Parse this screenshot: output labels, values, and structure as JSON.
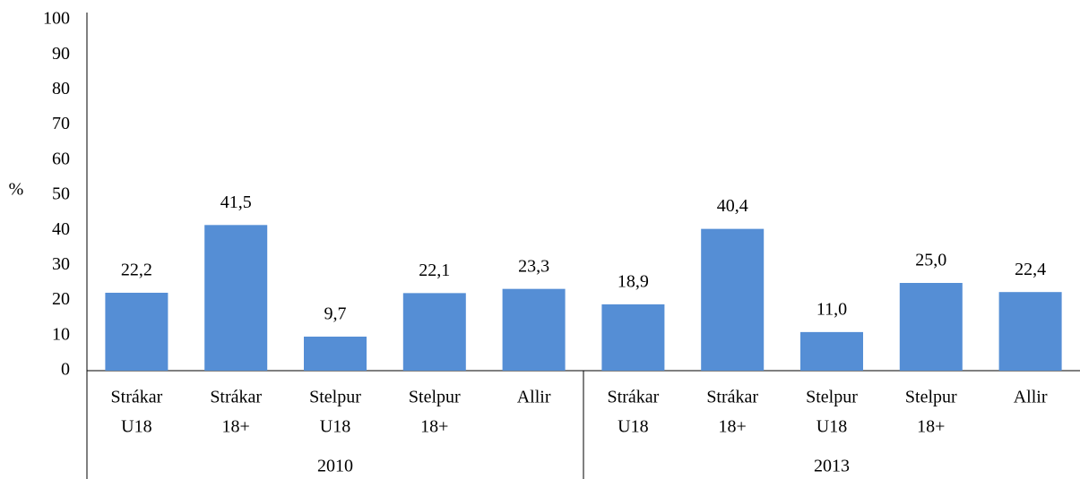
{
  "chart_data": {
    "type": "bar",
    "y_label": "%",
    "groups": [
      "2010",
      "2013"
    ],
    "categories": [
      [
        "Strákar",
        "U18"
      ],
      [
        "Strákar",
        "18+"
      ],
      [
        "Stelpur",
        "U18"
      ],
      [
        "Stelpur",
        "18+"
      ],
      [
        "Allir"
      ],
      [
        "Strákar",
        "U18"
      ],
      [
        "Strákar",
        "18+"
      ],
      [
        "Stelpur",
        "U18"
      ],
      [
        "Stelpur",
        "18+"
      ],
      [
        "Allir"
      ]
    ],
    "values": [
      22.2,
      41.5,
      9.7,
      22.1,
      23.3,
      18.9,
      40.4,
      11.0,
      25.0,
      22.4
    ],
    "value_labels": [
      "22,2",
      "41,5",
      "9,7",
      "22,1",
      "23,3",
      "18,9",
      "40,4",
      "11,0",
      "25,0",
      "22,4"
    ],
    "color": "#558ed5",
    "ylim": [
      0,
      100
    ],
    "yticks": [
      0,
      10,
      20,
      30,
      40,
      50,
      60,
      70,
      80,
      90,
      100
    ],
    "grid": false
  }
}
